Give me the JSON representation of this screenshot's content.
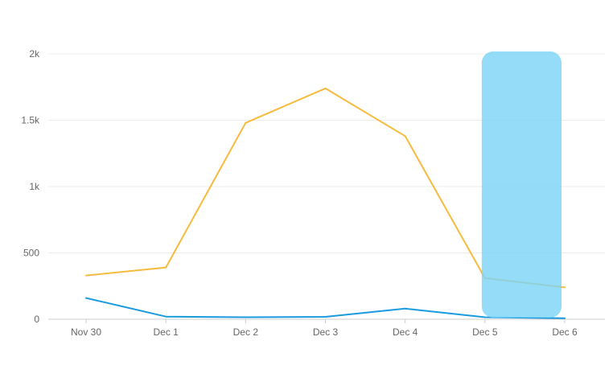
{
  "chart_data": {
    "type": "line",
    "categories": [
      "Nov 30",
      "Dec 1",
      "Dec 2",
      "Dec 3",
      "Dec 4",
      "Dec 5",
      "Dec 6"
    ],
    "series": [
      {
        "values": [
          330,
          390,
          1480,
          1740,
          1380,
          310,
          240
        ],
        "color": "#f6bb3e"
      },
      {
        "values": [
          160,
          20,
          15,
          18,
          80,
          15,
          8
        ],
        "color": "#1a9be0"
      }
    ],
    "yticks": [
      0,
      500,
      1000,
      1500,
      2000
    ],
    "ytick_labels": [
      "0",
      "500",
      "1k",
      "1.5k",
      "2k"
    ],
    "ylim": [
      0,
      2000
    ],
    "grid": true,
    "legend": "none",
    "highlight": {
      "from_category": "Dec 5",
      "to_category": "Dec 6",
      "color": "#7dd4f6"
    }
  }
}
